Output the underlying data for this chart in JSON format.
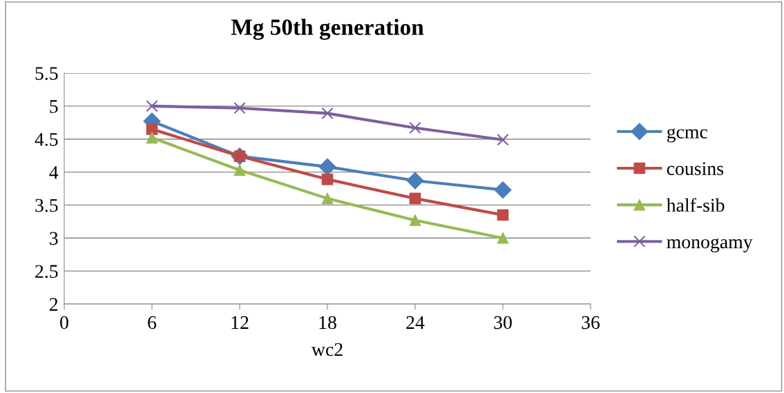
{
  "chart_data": {
    "type": "line",
    "title": "Mg 50th generation",
    "xlabel": "wc2",
    "x": [
      6,
      12,
      18,
      24,
      30
    ],
    "series": [
      {
        "name": "gcmc",
        "color": "#4a7ebb",
        "marker": "diamond",
        "values": [
          4.77,
          4.24,
          4.08,
          3.87,
          3.73
        ]
      },
      {
        "name": "cousins",
        "color": "#be4b48",
        "marker": "square",
        "values": [
          4.65,
          4.24,
          3.89,
          3.6,
          3.35
        ]
      },
      {
        "name": "half-sib",
        "color": "#98b954",
        "marker": "triangle",
        "values": [
          4.52,
          4.03,
          3.6,
          3.27,
          3.0
        ]
      },
      {
        "name": "monogamy",
        "color": "#7d5fa0",
        "marker": "cross",
        "values": [
          5.0,
          4.97,
          4.89,
          4.67,
          4.49
        ]
      }
    ],
    "xlim": [
      0,
      36
    ],
    "xticks": [
      0,
      6,
      12,
      18,
      24,
      30,
      36
    ],
    "ylim": [
      2,
      5.5
    ],
    "yticks": [
      2,
      2.5,
      3,
      3.5,
      4,
      4.5,
      5,
      5.5
    ],
    "grid": "y",
    "legend": "right",
    "line_style": "solid"
  }
}
